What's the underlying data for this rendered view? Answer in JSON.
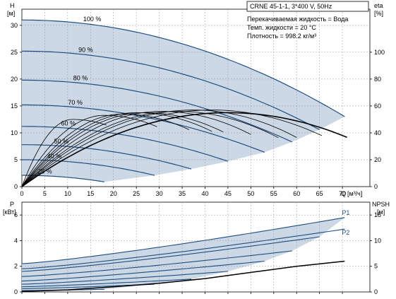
{
  "chart_data": [
    {
      "type": "line",
      "panel": "head-efficiency",
      "title": "CRNE 45-1-1, 3*400 V, 50Hz",
      "info": [
        "Перекачиваемая жидкость = Вода",
        "Темп. жидкости = 20 °C",
        "Плотность = 998.2 кг/м³"
      ],
      "left_axis": {
        "name": "H",
        "unit": "[м]",
        "ticks": [
          "0",
          "5",
          "10",
          "15",
          "20",
          "25",
          "30"
        ],
        "range": [
          0,
          33
        ]
      },
      "right_axis": {
        "name": "eta",
        "unit": "[%]",
        "ticks": [
          "0",
          "20",
          "40",
          "60",
          "80",
          "100"
        ],
        "range": [
          0,
          132
        ]
      },
      "x_axis": {
        "name": "Q",
        "unit": "[м³/ч]",
        "ticks": [
          "0",
          "5",
          "10",
          "15",
          "20",
          "25",
          "30",
          "35",
          "40",
          "45",
          "50",
          "55",
          "60",
          "65",
          "70"
        ],
        "range": [
          0,
          76
        ]
      },
      "grid": true,
      "colors": {
        "fill": "#cdd8e6",
        "pump_curve": "#1f4f80",
        "eta_curve": "#000000"
      },
      "series": [
        {
          "name": "100 %",
          "qmax": 70.5,
          "h0": 31.0,
          "k": 0.00376
        },
        {
          "name": "90 %",
          "qmax": 65.0,
          "h0": 25.2,
          "k": 0.00376
        },
        {
          "name": "80 %",
          "qmax": 59.0,
          "h0": 19.8,
          "k": 0.00376
        },
        {
          "name": "70 %",
          "qmax": 53.0,
          "h0": 15.2,
          "k": 0.00376
        },
        {
          "name": "60 %",
          "qmax": 45.0,
          "h0": 11.2,
          "k": 0.00376
        },
        {
          "name": "50 %",
          "qmax": 37.0,
          "h0": 7.8,
          "k": 0.00376
        },
        {
          "name": "40 %",
          "qmax": 29.0,
          "h0": 5.0,
          "k": 0.00376
        },
        {
          "name": "25 %",
          "qmax": 18.0,
          "h0": 2.1,
          "k": 0.00376
        }
      ],
      "eta_curves": [
        {
          "qmax": 71.0,
          "peak": 55,
          "qpeak": 45.0
        },
        {
          "qmax": 65.5,
          "peak": 57,
          "qpeak": 41.5
        },
        {
          "qmax": 60.0,
          "peak": 57,
          "qpeak": 37.5
        },
        {
          "qmax": 56.0,
          "peak": 56,
          "qpeak": 34.0
        },
        {
          "qmax": 50.0,
          "peak": 56,
          "qpeak": 30.5
        },
        {
          "qmax": 44.0,
          "peak": 55,
          "qpeak": 27.0
        },
        {
          "qmax": 41.5,
          "peak": 55,
          "qpeak": 25.0
        },
        {
          "qmax": 36.5,
          "peak": 54,
          "qpeak": 22.0
        },
        {
          "qmax": 29.5,
          "peak": 53,
          "qpeak": 18.0
        },
        {
          "qmax": 18.5,
          "peak": 50,
          "qpeak": 11.0
        }
      ]
    },
    {
      "type": "line",
      "panel": "power-npsh",
      "left_axis": {
        "name": "P",
        "unit": "[кВт]",
        "ticks": [
          "0",
          "2",
          "4",
          "6"
        ],
        "range": [
          0,
          7
        ]
      },
      "right_axis": {
        "name": "NPSH",
        "unit": "[м]",
        "ticks": [
          "0",
          "5",
          "10",
          "15"
        ],
        "range": [
          0,
          17.5
        ]
      },
      "x_axis": {
        "range": [
          0,
          76
        ]
      },
      "grid": true,
      "colors": {
        "fill": "#cdd8e6",
        "power_curve": "#1f4f80",
        "npsh_curve": "#000000"
      },
      "series": [
        {
          "name": "P1",
          "qmax": 70.5,
          "p0": 2.2,
          "pend": 5.8
        },
        {
          "name": "P2",
          "qmax": 70.5,
          "p0": 1.8,
          "pend": 4.9
        }
      ],
      "speed_power_curves": [
        {
          "qmax": 65.0,
          "p0": 1.6,
          "pend": 4.3
        },
        {
          "qmax": 59.0,
          "p0": 1.2,
          "pend": 3.2
        },
        {
          "qmax": 53.0,
          "p0": 0.85,
          "pend": 2.4
        },
        {
          "qmax": 45.0,
          "p0": 0.6,
          "pend": 1.6
        },
        {
          "qmax": 37.0,
          "p0": 0.4,
          "pend": 1.0
        },
        {
          "qmax": 29.0,
          "p0": 0.25,
          "pend": 0.6
        },
        {
          "qmax": 18.0,
          "p0": 0.1,
          "pend": 0.2
        }
      ],
      "npsh": {
        "q": [
          0,
          10,
          20,
          30,
          40,
          50,
          60,
          70.5
        ],
        "values": [
          0.1,
          0.4,
          1.0,
          1.7,
          2.6,
          3.8,
          5.0,
          6.0
        ]
      }
    }
  ]
}
